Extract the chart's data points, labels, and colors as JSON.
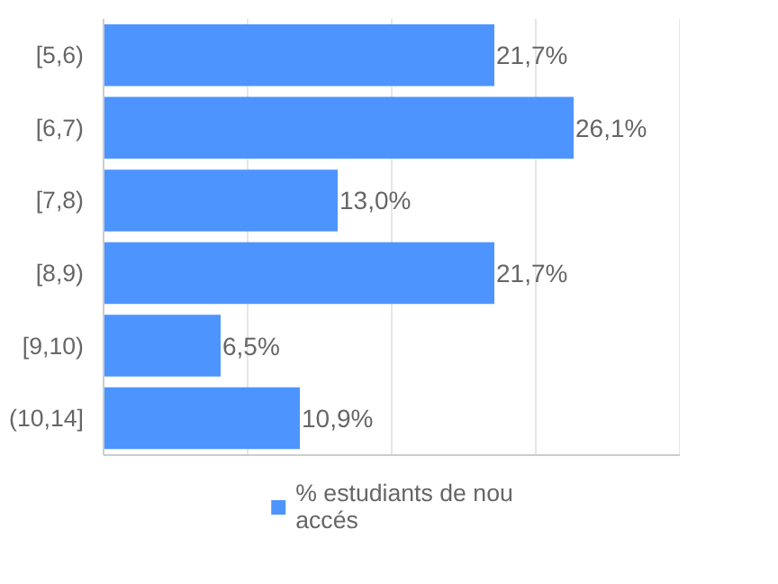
{
  "chart_data": {
    "type": "bar",
    "orientation": "horizontal",
    "categories": [
      "[5,6)",
      "[6,7)",
      "[7,8)",
      "[8,9)",
      "[9,10)",
      "(10,14]"
    ],
    "series": [
      {
        "name": "% estudiants de nou accés",
        "color": "#4d94ff",
        "values": [
          21.7,
          26.1,
          13.0,
          21.7,
          6.5,
          10.9
        ],
        "value_labels": [
          "21,7%",
          "26,1%",
          "13,0%",
          "21,7%",
          "6,5%",
          "10,9%"
        ]
      }
    ],
    "xlim": [
      0,
      32
    ],
    "xticks": [
      {
        "value": 0,
        "label": null
      },
      {
        "value": 8,
        "label": null
      },
      {
        "value": 16,
        "label": null
      },
      {
        "value": 24,
        "label": null
      },
      {
        "value": 32,
        "label": null
      }
    ],
    "grid": "x",
    "legend": "bottom"
  }
}
